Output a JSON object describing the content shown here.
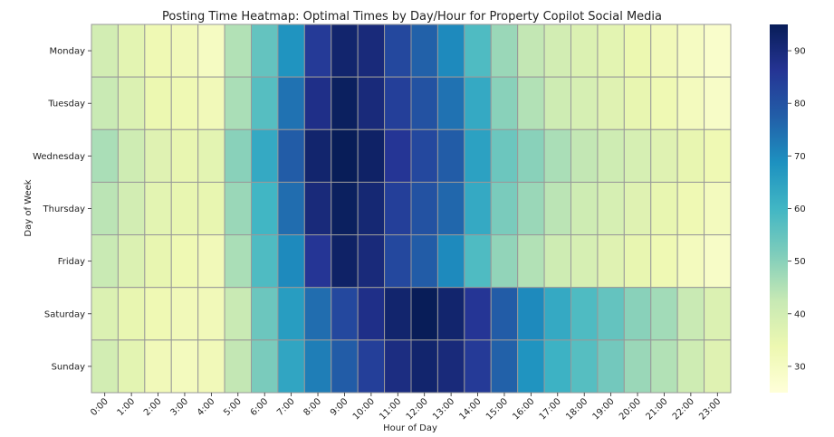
{
  "chart_data": {
    "type": "heatmap",
    "title": "Posting Time Heatmap: Optimal Times by Day/Hour for Property Copilot Social Media",
    "xlabel": "Hour of Day",
    "ylabel": "Day of Week",
    "x": [
      "0:00",
      "1:00",
      "2:00",
      "3:00",
      "4:00",
      "5:00",
      "6:00",
      "7:00",
      "8:00",
      "9:00",
      "10:00",
      "11:00",
      "12:00",
      "13:00",
      "14:00",
      "15:00",
      "16:00",
      "17:00",
      "18:00",
      "19:00",
      "20:00",
      "21:00",
      "22:00",
      "23:00"
    ],
    "y": [
      "Monday",
      "Tuesday",
      "Wednesday",
      "Thursday",
      "Friday",
      "Saturday",
      "Sunday"
    ],
    "values": [
      [
        40,
        36,
        33,
        32,
        30,
        45,
        55,
        68,
        85,
        92,
        90,
        82,
        77,
        70,
        58,
        48,
        43,
        40,
        38,
        36,
        34,
        32,
        30,
        28
      ],
      [
        42,
        38,
        34,
        33,
        32,
        46,
        57,
        74,
        88,
        94,
        90,
        84,
        80,
        74,
        63,
        50,
        45,
        41,
        39,
        37,
        35,
        33,
        31,
        29
      ],
      [
        46,
        41,
        37,
        35,
        36,
        50,
        63,
        78,
        92,
        95,
        93,
        86,
        82,
        78,
        65,
        54,
        50,
        46,
        43,
        41,
        39,
        37,
        35,
        33
      ],
      [
        44,
        40,
        36,
        35,
        35,
        48,
        60,
        75,
        90,
        94,
        91,
        84,
        80,
        76,
        63,
        52,
        48,
        44,
        41,
        39,
        37,
        35,
        33,
        31
      ],
      [
        42,
        38,
        35,
        33,
        32,
        46,
        58,
        70,
        86,
        93,
        90,
        82,
        78,
        70,
        58,
        49,
        45,
        41,
        39,
        37,
        35,
        33,
        31,
        29
      ],
      [
        38,
        35,
        33,
        32,
        32,
        42,
        54,
        66,
        75,
        82,
        88,
        92,
        95,
        92,
        86,
        78,
        70,
        63,
        58,
        55,
        50,
        47,
        42,
        38
      ],
      [
        40,
        36,
        32,
        31,
        32,
        43,
        52,
        64,
        72,
        78,
        84,
        89,
        92,
        90,
        85,
        77,
        68,
        61,
        57,
        53,
        48,
        45,
        41,
        37
      ]
    ],
    "zlim": [
      25,
      95
    ],
    "colorbar_ticks": [
      30,
      40,
      50,
      60,
      70,
      80,
      90
    ],
    "colormap": "YlGnBu",
    "colormap_stops": [
      "#ffffd9",
      "#edf8b1",
      "#c7e9b4",
      "#7fcdbb",
      "#41b6c4",
      "#1d91c0",
      "#225ea8",
      "#253494",
      "#081d58"
    ],
    "cell_border_color": "#999999"
  }
}
